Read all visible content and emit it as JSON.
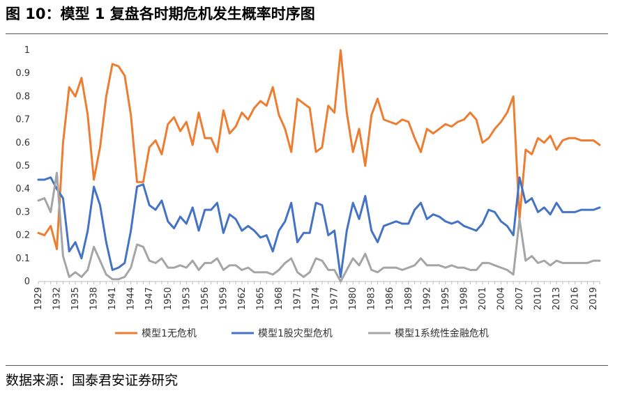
{
  "header": {
    "title": "图 10：模型 1 复盘各时期危机发生概率时序图"
  },
  "footer": {
    "source": "数据来源：国泰君安证券研究"
  },
  "colors": {
    "no_crisis": "#ED7D31",
    "stock_crash": "#4472C4",
    "systemic": "#A5A5A5"
  },
  "chart_data": {
    "type": "line",
    "title": "",
    "xlabel": "",
    "ylabel": "",
    "ylim": [
      0,
      1
    ],
    "yticks": [
      "0",
      "0.1",
      "0.2",
      "0.3",
      "0.4",
      "0.5",
      "0.6",
      "0.7",
      "0.8",
      "0.9",
      "1"
    ],
    "xticks": [
      "1929",
      "1932",
      "1935",
      "1938",
      "1941",
      "1944",
      "1947",
      "1950",
      "1953",
      "1956",
      "1959",
      "1962",
      "1965",
      "1968",
      "1971",
      "1974",
      "1977",
      "1980",
      "1983",
      "1986",
      "1989",
      "1992",
      "1995",
      "1998",
      "2001",
      "2004",
      "2007",
      "2010",
      "2013",
      "2016",
      "2019"
    ],
    "x": [
      1929,
      1930,
      1931,
      1932,
      1933,
      1934,
      1935,
      1936,
      1937,
      1938,
      1939,
      1940,
      1941,
      1942,
      1943,
      1944,
      1945,
      1946,
      1947,
      1948,
      1949,
      1950,
      1951,
      1952,
      1953,
      1954,
      1955,
      1956,
      1957,
      1958,
      1959,
      1960,
      1961,
      1962,
      1963,
      1964,
      1965,
      1966,
      1967,
      1968,
      1969,
      1970,
      1971,
      1972,
      1973,
      1974,
      1975,
      1976,
      1977,
      1978,
      1979,
      1980,
      1981,
      1982,
      1983,
      1984,
      1985,
      1986,
      1987,
      1988,
      1989,
      1990,
      1991,
      1992,
      1993,
      1994,
      1995,
      1996,
      1997,
      1998,
      1999,
      2000,
      2001,
      2002,
      2003,
      2004,
      2005,
      2006,
      2007,
      2008,
      2009,
      2010,
      2011,
      2012,
      2013,
      2014,
      2015,
      2016,
      2017,
      2018,
      2019,
      2020
    ],
    "legend_position": "bottom",
    "grid": false,
    "series": [
      {
        "name": "模型1无危机",
        "color_key": "no_crisis",
        "values": [
          0.21,
          0.2,
          0.24,
          0.14,
          0.6,
          0.84,
          0.8,
          0.88,
          0.72,
          0.44,
          0.58,
          0.8,
          0.94,
          0.93,
          0.89,
          0.72,
          0.43,
          0.43,
          0.58,
          0.61,
          0.55,
          0.68,
          0.71,
          0.65,
          0.69,
          0.59,
          0.73,
          0.62,
          0.62,
          0.56,
          0.74,
          0.64,
          0.67,
          0.73,
          0.7,
          0.75,
          0.78,
          0.76,
          0.84,
          0.72,
          0.66,
          0.56,
          0.79,
          0.77,
          0.75,
          0.56,
          0.58,
          0.76,
          0.73,
          1.0,
          0.73,
          0.56,
          0.66,
          0.5,
          0.72,
          0.79,
          0.7,
          0.69,
          0.68,
          0.7,
          0.69,
          0.62,
          0.56,
          0.66,
          0.64,
          0.66,
          0.68,
          0.67,
          0.69,
          0.7,
          0.73,
          0.7,
          0.6,
          0.62,
          0.66,
          0.69,
          0.73,
          0.8,
          0.27,
          0.57,
          0.55,
          0.62,
          0.6,
          0.63,
          0.57,
          0.61,
          0.62,
          0.62,
          0.61,
          0.61,
          0.61,
          0.59
        ]
      },
      {
        "name": "模型1股灾型危机",
        "color_key": "stock_crash",
        "values": [
          0.44,
          0.44,
          0.45,
          0.4,
          0.36,
          0.13,
          0.17,
          0.1,
          0.22,
          0.41,
          0.33,
          0.17,
          0.05,
          0.06,
          0.08,
          0.22,
          0.41,
          0.42,
          0.33,
          0.31,
          0.35,
          0.26,
          0.23,
          0.28,
          0.25,
          0.32,
          0.22,
          0.31,
          0.31,
          0.34,
          0.21,
          0.29,
          0.27,
          0.22,
          0.24,
          0.22,
          0.19,
          0.2,
          0.13,
          0.22,
          0.26,
          0.34,
          0.17,
          0.21,
          0.21,
          0.34,
          0.33,
          0.2,
          0.22,
          0.02,
          0.22,
          0.34,
          0.27,
          0.37,
          0.22,
          0.17,
          0.24,
          0.25,
          0.26,
          0.25,
          0.25,
          0.31,
          0.34,
          0.27,
          0.29,
          0.28,
          0.26,
          0.25,
          0.26,
          0.24,
          0.23,
          0.22,
          0.25,
          0.31,
          0.3,
          0.26,
          0.24,
          0.2,
          0.45,
          0.34,
          0.36,
          0.3,
          0.32,
          0.29,
          0.34,
          0.3,
          0.3,
          0.3,
          0.31,
          0.31,
          0.31,
          0.32
        ]
      },
      {
        "name": "模型1系统性金融危机",
        "color_key": "systemic",
        "values": [
          0.35,
          0.36,
          0.3,
          0.47,
          0.11,
          0.02,
          0.04,
          0.02,
          0.05,
          0.15,
          0.09,
          0.03,
          0.01,
          0.01,
          0.02,
          0.06,
          0.16,
          0.15,
          0.09,
          0.08,
          0.1,
          0.06,
          0.06,
          0.07,
          0.06,
          0.09,
          0.05,
          0.08,
          0.08,
          0.1,
          0.05,
          0.07,
          0.07,
          0.05,
          0.06,
          0.04,
          0.04,
          0.04,
          0.03,
          0.05,
          0.08,
          0.1,
          0.04,
          0.02,
          0.04,
          0.1,
          0.09,
          0.05,
          0.05,
          0.0,
          0.05,
          0.1,
          0.07,
          0.12,
          0.05,
          0.04,
          0.06,
          0.06,
          0.06,
          0.05,
          0.06,
          0.07,
          0.1,
          0.07,
          0.07,
          0.07,
          0.06,
          0.07,
          0.06,
          0.06,
          0.05,
          0.05,
          0.08,
          0.08,
          0.07,
          0.06,
          0.05,
          0.03,
          0.27,
          0.09,
          0.11,
          0.08,
          0.09,
          0.07,
          0.09,
          0.08,
          0.08,
          0.08,
          0.08,
          0.08,
          0.09,
          0.09
        ]
      }
    ]
  }
}
